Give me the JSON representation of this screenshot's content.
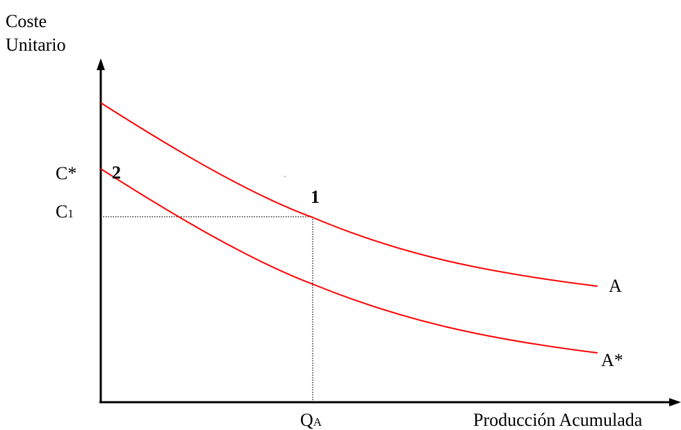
{
  "axes": {
    "y_label_line1": "Coste",
    "y_label_line2": "Unitario",
    "x_label": "Producción Acumulada"
  },
  "ticks": {
    "c_star": "C*",
    "c1_main": "C",
    "c1_sub": "1",
    "qa_main": "Q",
    "qa_sub": "A"
  },
  "curves": [
    {
      "label": "A",
      "color": "#ff0000"
    },
    {
      "label": "A*",
      "color": "#ff0000"
    }
  ],
  "points": {
    "point1": "1",
    "point2": "2"
  },
  "colors": {
    "curve": "#ff0000",
    "axis": "#000000",
    "guide": "#000000"
  }
}
